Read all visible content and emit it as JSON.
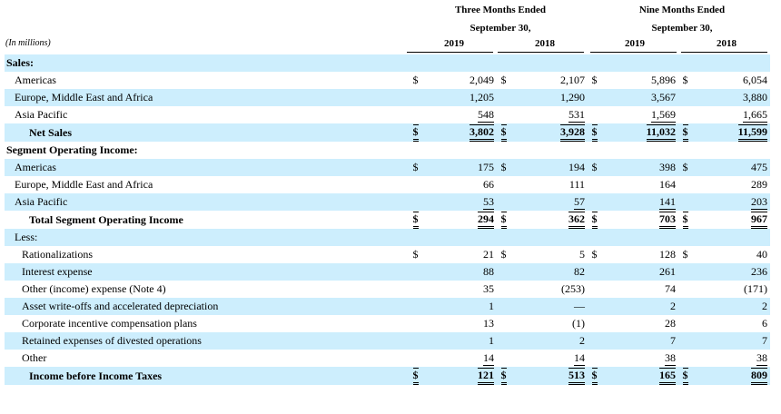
{
  "header": {
    "three_months": "Three Months Ended",
    "nine_months": "Nine Months Ended",
    "sept30": "September 30,",
    "units": "(In millions)",
    "years": [
      "2019",
      "2018",
      "2019",
      "2018"
    ]
  },
  "currency_symbol": "$",
  "rows": [
    {
      "label": "Sales:",
      "type": "section",
      "blue": true
    },
    {
      "label": "Americas",
      "type": "item",
      "blue": false,
      "dollar": true,
      "values": [
        "2,049",
        "2,107",
        "5,896",
        "6,054"
      ]
    },
    {
      "label": "Europe, Middle East and Africa",
      "type": "item",
      "blue": true,
      "dollar": false,
      "values": [
        "1,205",
        "1,290",
        "3,567",
        "3,880"
      ]
    },
    {
      "label": "Asia Pacific",
      "type": "item",
      "blue": false,
      "dollar": false,
      "values": [
        "548",
        "531",
        "1,569",
        "1,665"
      ]
    },
    {
      "label": "Net Sales",
      "type": "total",
      "blue": true,
      "dollar": true,
      "values": [
        "3,802",
        "3,928",
        "11,032",
        "11,599"
      ]
    },
    {
      "label": "Segment Operating Income:",
      "type": "section",
      "blue": false
    },
    {
      "label": "Americas",
      "type": "item",
      "blue": true,
      "dollar": true,
      "values": [
        "175",
        "194",
        "398",
        "475"
      ]
    },
    {
      "label": "Europe, Middle East and Africa",
      "type": "item",
      "blue": false,
      "dollar": false,
      "values": [
        "66",
        "111",
        "164",
        "289"
      ]
    },
    {
      "label": "Asia Pacific",
      "type": "item",
      "blue": true,
      "dollar": false,
      "values": [
        "53",
        "57",
        "141",
        "203"
      ]
    },
    {
      "label": "Total Segment Operating Income",
      "type": "total",
      "blue": false,
      "dollar": true,
      "values": [
        "294",
        "362",
        "703",
        "967"
      ]
    },
    {
      "label": "Less:",
      "type": "plain",
      "blue": true
    },
    {
      "label": "Rationalizations",
      "type": "item2",
      "blue": false,
      "dollar": true,
      "values": [
        "21",
        "5",
        "128",
        "40"
      ]
    },
    {
      "label": "Interest expense",
      "type": "item2",
      "blue": true,
      "dollar": false,
      "values": [
        "88",
        "82",
        "261",
        "236"
      ]
    },
    {
      "label": "Other (income) expense (Note 4)",
      "type": "item2",
      "blue": false,
      "dollar": false,
      "values": [
        "35",
        "(253)",
        "74",
        "(171)"
      ]
    },
    {
      "label": "Asset write-offs and accelerated depreciation",
      "type": "item2",
      "blue": true,
      "dollar": false,
      "values": [
        "1",
        "—",
        "2",
        "2"
      ]
    },
    {
      "label": "Corporate incentive compensation plans",
      "type": "item2",
      "blue": false,
      "dollar": false,
      "values": [
        "13",
        "(1)",
        "28",
        "6"
      ]
    },
    {
      "label": "Retained expenses of divested operations",
      "type": "item2",
      "blue": true,
      "dollar": false,
      "values": [
        "1",
        "2",
        "7",
        "7"
      ]
    },
    {
      "label": "Other",
      "type": "item2",
      "blue": false,
      "dollar": false,
      "values": [
        "14",
        "14",
        "38",
        "38"
      ]
    },
    {
      "label": "Income before Income Taxes",
      "type": "total",
      "blue": true,
      "dollar": true,
      "values": [
        "121",
        "513",
        "165",
        "809"
      ]
    }
  ]
}
